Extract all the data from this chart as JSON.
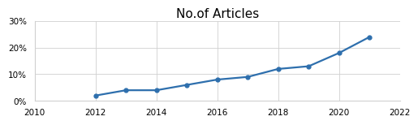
{
  "title": "No.of Articles",
  "x": [
    2012,
    2013,
    2014,
    2015,
    2016,
    2017,
    2018,
    2019,
    2020,
    2021
  ],
  "y": [
    0.02,
    0.04,
    0.04,
    0.06,
    0.08,
    0.09,
    0.12,
    0.13,
    0.18,
    0.24
  ],
  "xlim": [
    2010,
    2022
  ],
  "ylim": [
    0,
    0.3
  ],
  "xticks": [
    2010,
    2012,
    2014,
    2016,
    2018,
    2020,
    2022
  ],
  "yticks": [
    0.0,
    0.1,
    0.2,
    0.3
  ],
  "ytick_labels": [
    "0%",
    "10%",
    "20%",
    "30%"
  ],
  "line_color": "#2e6fad",
  "marker": "o",
  "marker_size": 3.5,
  "line_width": 1.6,
  "title_fontsize": 11,
  "tick_fontsize": 7.5,
  "background_color": "#ffffff",
  "grid_color": "#d0d0d0"
}
